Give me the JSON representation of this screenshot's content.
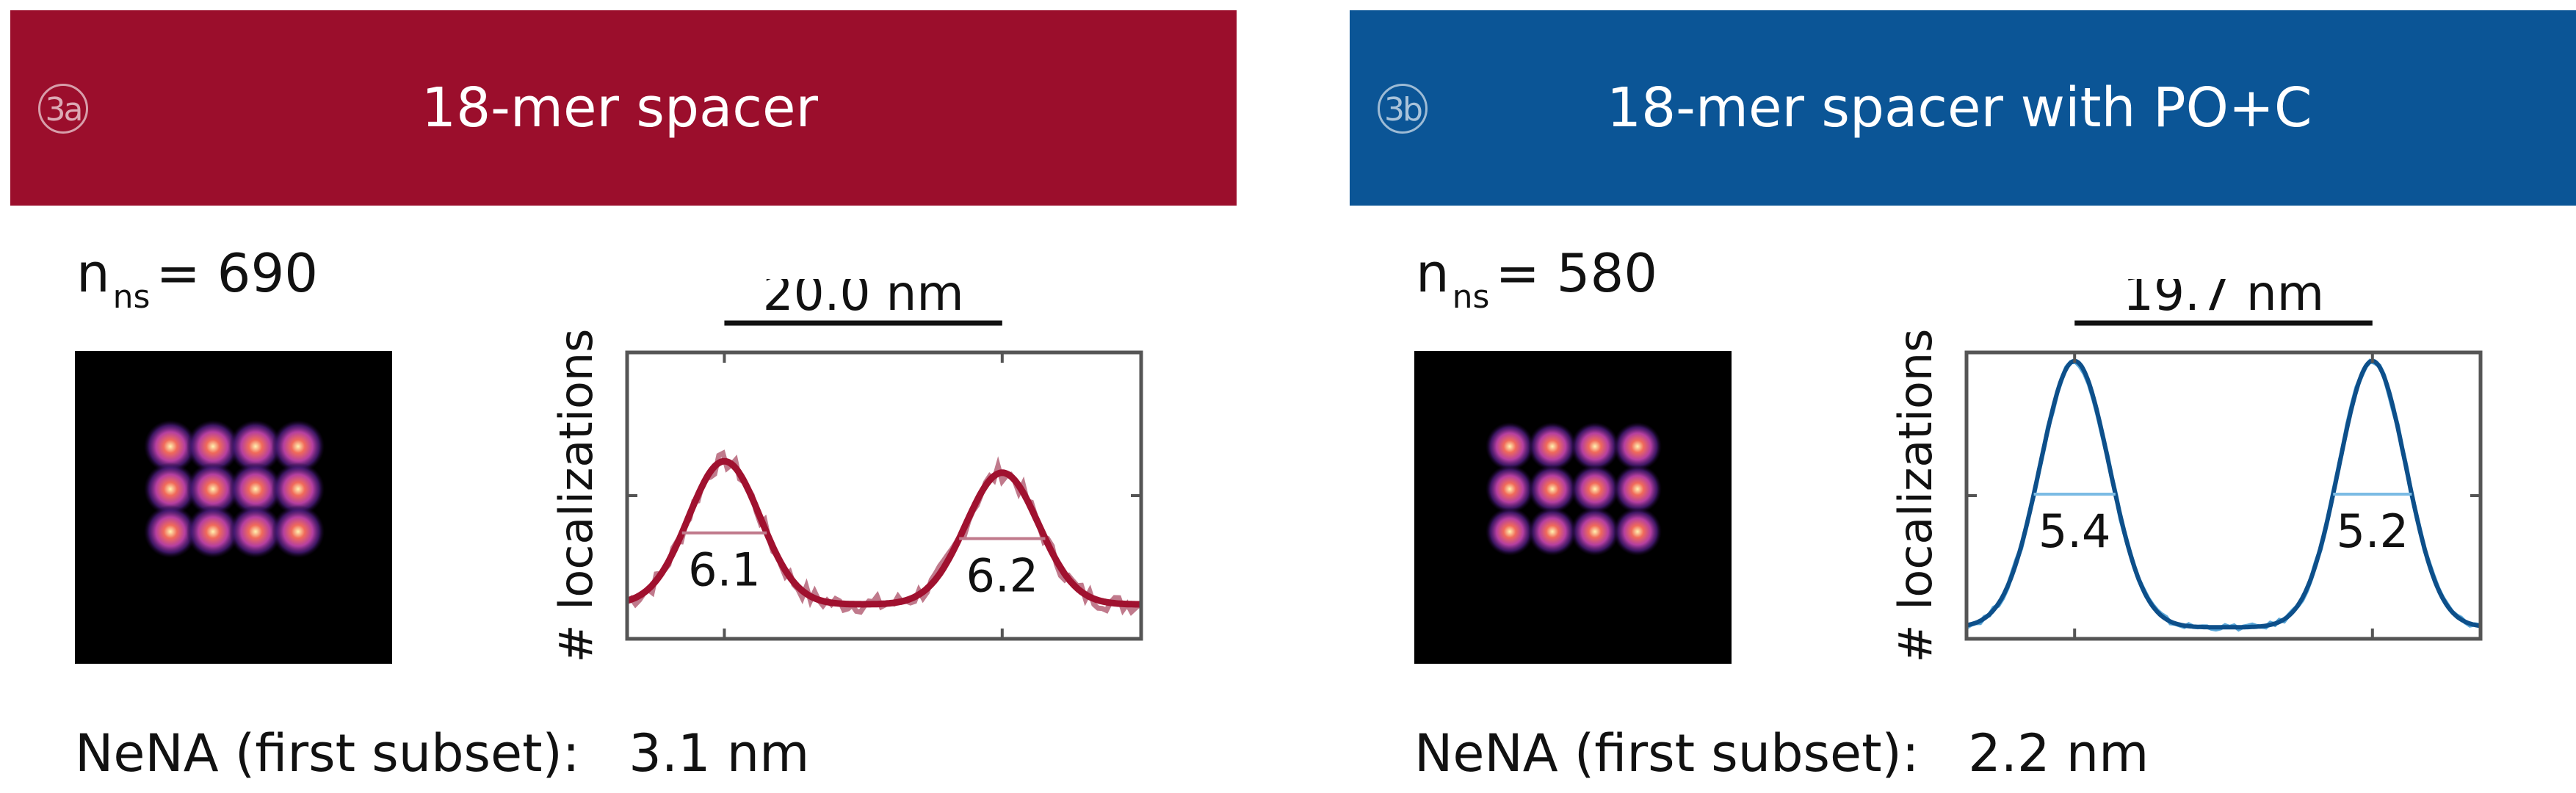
{
  "panels": [
    {
      "badge": "3a",
      "title": "18-mer spacer",
      "banner_color": "#9b0e2c",
      "n_label": "n",
      "n_sub": "ns",
      "n_value": "= 690",
      "nena_label": "NeNA (first subset):",
      "nena_value": "3.1 nm",
      "micro_grid": {
        "rows": 3,
        "cols": 4,
        "intensity": 0.9
      },
      "fit_color": "#a0112f",
      "data_color": "#c07a8c",
      "fwhm_color": "#c07a8c"
    },
    {
      "badge": "3b",
      "title": "18-mer spacer with PO+C",
      "banner_color": "#0b5596",
      "n_label": "n",
      "n_sub": "ns",
      "n_value": "= 580",
      "nena_label": "NeNA (first subset):",
      "nena_value": "2.2 nm",
      "micro_grid": {
        "rows": 3,
        "cols": 4,
        "intensity": 0.75
      },
      "fit_color": "#0d4f8a",
      "data_color": "#5aa7d8",
      "fwhm_color": "#7bbbe4"
    }
  ],
  "chart_data": [
    {
      "type": "line",
      "ylabel": "# localizations",
      "xlabel": "",
      "distance_label": "20.0 nm",
      "xlim": [
        -17,
        20
      ],
      "ylim": [
        0,
        1
      ],
      "x_ticks": [
        -10,
        10
      ],
      "y_ticks": [
        0.5
      ],
      "peaks": [
        {
          "center": -10.0,
          "height": 0.62,
          "fwhm": 6.1,
          "label": "6.1"
        },
        {
          "center": 10.0,
          "height": 0.58,
          "fwhm": 6.2,
          "label": "6.2"
        }
      ],
      "baseline": 0.12,
      "series": [
        {
          "name": ""
        },
        {
          "name": ""
        }
      ]
    },
    {
      "type": "line",
      "ylabel": "# localizations",
      "xlabel": "",
      "distance_label": "19.7 nm",
      "xlim": [
        -17,
        17
      ],
      "ylim": [
        0,
        1
      ],
      "x_ticks": [
        -9.85,
        9.85
      ],
      "y_ticks": [
        0.5
      ],
      "peaks": [
        {
          "center": -9.85,
          "height": 0.97,
          "fwhm": 5.4,
          "label": "5.4"
        },
        {
          "center": 9.85,
          "height": 0.97,
          "fwhm": 5.2,
          "label": "5.2"
        }
      ],
      "baseline": 0.04,
      "series": [
        {
          "name": ""
        },
        {
          "name": ""
        }
      ]
    }
  ]
}
